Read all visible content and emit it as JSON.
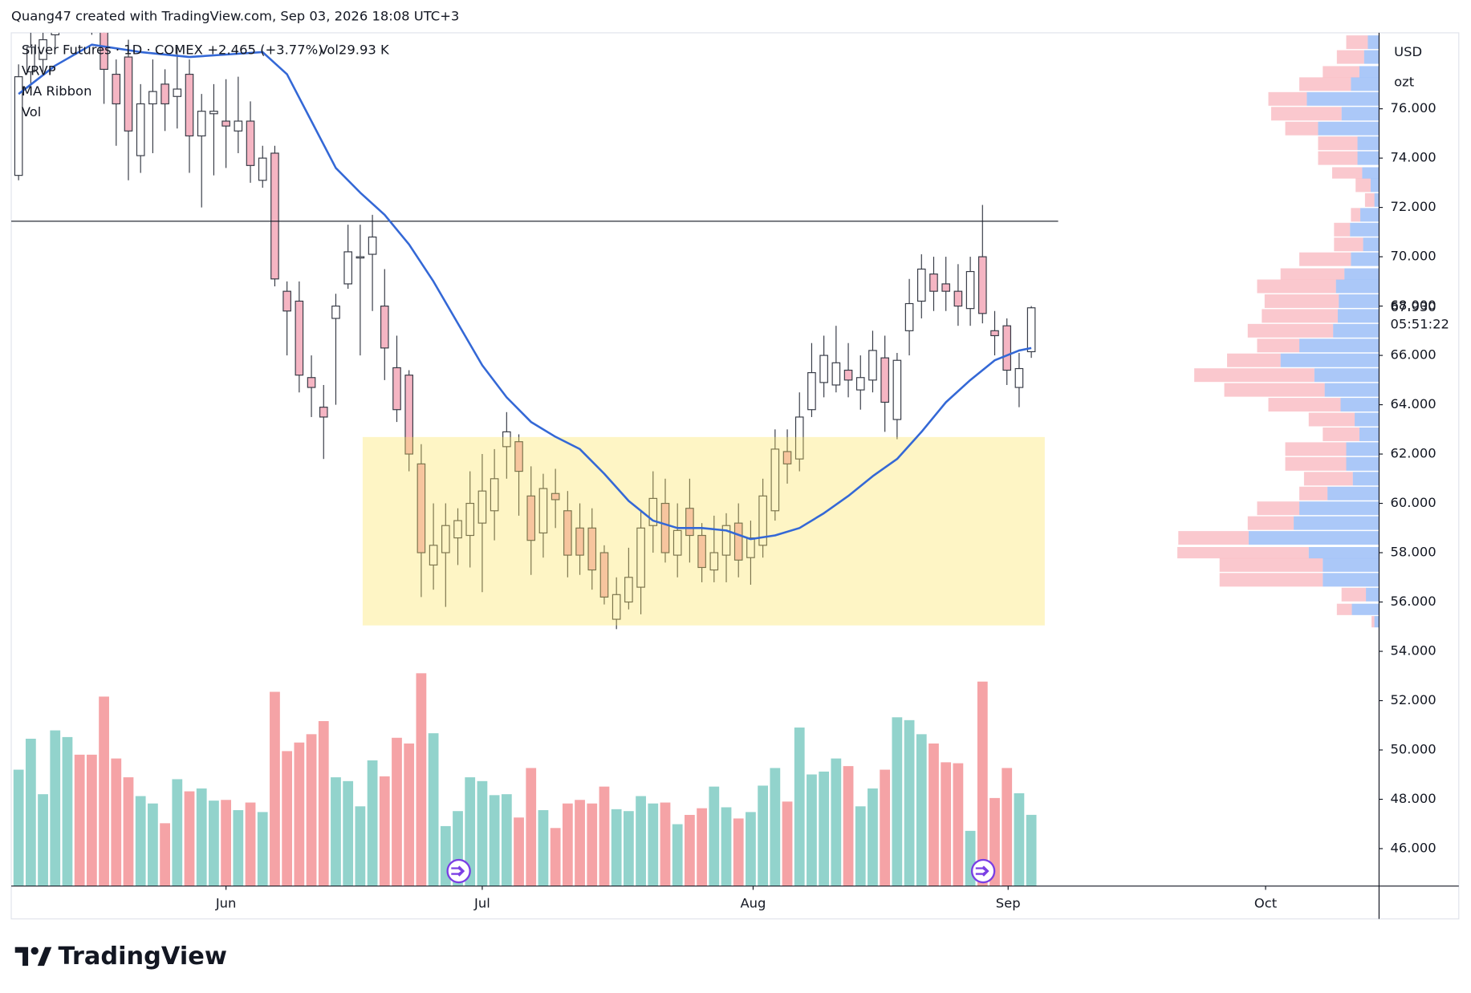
{
  "header": {
    "credit": "Quang47 created with TradingView.com, Sep 03, 2026 18:08 UTC+3"
  },
  "logo": "TradingView",
  "chart_data": {
    "type": "candlestick",
    "title": "Silver Futures · 1D · COMEX",
    "change": "+2.465 (+3.77%)",
    "volume_label": "Vol29.93 K",
    "indicators": [
      "VRVP",
      "MA Ribbon",
      "Vol"
    ],
    "currency": "USD",
    "unit": "ozt",
    "last_price": {
      "value": 67.93,
      "label": "67.930"
    },
    "countdown": "05:51:22",
    "x": [
      0,
      1,
      2,
      3,
      4,
      5,
      6,
      7,
      8,
      9,
      10,
      11,
      12,
      13,
      14,
      15,
      16,
      17,
      18,
      19,
      20,
      21,
      22,
      23,
      24,
      25,
      26,
      27,
      28,
      29,
      30,
      31,
      32,
      33,
      34,
      35,
      36,
      37,
      38,
      39,
      40,
      41,
      42,
      43,
      44,
      45,
      46,
      47,
      48,
      49,
      50,
      51,
      52,
      53,
      54,
      55,
      56,
      57,
      58,
      59,
      60,
      61,
      62,
      63,
      64,
      65,
      66,
      67,
      68,
      69,
      70,
      71,
      72,
      73,
      74,
      75,
      76,
      77,
      78,
      79,
      80,
      81,
      82,
      83
    ],
    "open": [
      73.3,
      77.5,
      78,
      79,
      80,
      80.5,
      80,
      79.3,
      77.4,
      78.1,
      74.1,
      76.2,
      77.0,
      76.5,
      77.4,
      74.9,
      75.8,
      75.5,
      75.1,
      75.5,
      73.1,
      74.2,
      68.6,
      68.2,
      65.1,
      63.9,
      67.5,
      68.9,
      69.95,
      70.1,
      68.0,
      65.5,
      65.2,
      61.6,
      57.5,
      58.0,
      58.6,
      58.7,
      59.2,
      59.7,
      62.3,
      62.5,
      60.3,
      58.8,
      60.4,
      59.7,
      59.0,
      59.0,
      58.0,
      55.3,
      56.0,
      56.6,
      59.1,
      60.0,
      57.9,
      59.8,
      58.7,
      57.3,
      57.9,
      59.2,
      57.8,
      58.3,
      59.7,
      62.1,
      61.8,
      63.8,
      64.9,
      64.8,
      65.4,
      64.6,
      65.0,
      65.9,
      63.4,
      67.0,
      68.2,
      69.3,
      68.9,
      68.6,
      67.9,
      70.0,
      67.0,
      67.2,
      64.7,
      66.15
    ],
    "high": [
      77.8,
      79.5,
      79.5,
      80.5,
      81,
      81,
      80.5,
      80,
      78,
      78.8,
      77,
      78,
      77.6,
      78.5,
      78,
      76.6,
      77,
      77.2,
      77.3,
      76.3,
      74.5,
      74.5,
      69.0,
      69.0,
      66.0,
      64.8,
      68.5,
      71.3,
      71.3,
      71.7,
      69.5,
      66.8,
      65.4,
      62.4,
      60.0,
      60.0,
      59.8,
      61.3,
      62.0,
      62.2,
      63.7,
      62.8,
      61.5,
      61.2,
      61.4,
      60.5,
      60.0,
      59.8,
      58.3,
      57.0,
      58.2,
      59.7,
      61.3,
      61.0,
      60.0,
      61.0,
      59.2,
      59.5,
      59.6,
      60.0,
      59.3,
      61.0,
      63.0,
      63.0,
      64.5,
      66.5,
      66.8,
      67.2,
      66.5,
      66.0,
      67.0,
      66.8,
      66.1,
      69.1,
      70.1,
      70.0,
      70.0,
      69.7,
      70.0,
      72.1,
      67.8,
      67.5,
      66.1,
      68.0
    ],
    "low": [
      73.1,
      77,
      77.5,
      78.5,
      79.5,
      79.5,
      79,
      76.2,
      74.5,
      73.1,
      73.4,
      74.2,
      75.1,
      75.2,
      73.4,
      72.0,
      73.3,
      73.6,
      74.2,
      73.0,
      72.8,
      68.8,
      66.0,
      64.5,
      63.5,
      61.8,
      64.0,
      68.7,
      66.0,
      67.8,
      65.0,
      63.3,
      61.3,
      56.2,
      56.5,
      55.8,
      57.5,
      57.4,
      56.4,
      58.5,
      61.0,
      59.5,
      57.1,
      57.8,
      59.0,
      57.0,
      57.1,
      56.5,
      55.9,
      54.9,
      55.7,
      55.5,
      58.0,
      57.6,
      57.0,
      57.6,
      56.8,
      56.8,
      56.8,
      57.0,
      56.7,
      57.8,
      59.3,
      60.8,
      61.3,
      63.5,
      64.3,
      64.5,
      64.3,
      63.8,
      64.5,
      62.9,
      62.6,
      66.0,
      67.5,
      67.8,
      67.8,
      67.2,
      67.2,
      67.3,
      66.0,
      64.8,
      63.9,
      65.9
    ],
    "close": [
      77.3,
      78.5,
      78.8,
      80,
      80.5,
      80,
      79.5,
      77.6,
      76.2,
      75.1,
      76.2,
      76.7,
      76.2,
      76.8,
      74.9,
      75.9,
      75.9,
      75.3,
      75.5,
      73.7,
      74.0,
      69.1,
      67.8,
      65.2,
      64.7,
      63.5,
      68.0,
      70.2,
      70.0,
      70.8,
      66.3,
      63.8,
      62.0,
      58.0,
      58.3,
      59.1,
      59.3,
      60.0,
      60.5,
      61.0,
      62.9,
      61.3,
      58.5,
      60.6,
      60.15,
      57.9,
      57.9,
      57.3,
      56.2,
      56.3,
      57.0,
      59.0,
      60.2,
      58.0,
      58.9,
      58.7,
      57.4,
      58.0,
      59.1,
      57.7,
      58.6,
      60.3,
      62.2,
      61.6,
      63.5,
      65.3,
      66.0,
      65.7,
      65.0,
      65.1,
      66.2,
      64.1,
      65.8,
      68.1,
      69.5,
      68.6,
      68.6,
      68.0,
      69.4,
      67.7,
      66.8,
      65.4,
      65.465,
      67.93
    ],
    "volume": [
      48.9,
      61.9,
      38.6,
      65.4,
      62.6,
      55.2,
      55.2,
      79.6,
      53.6,
      45.7,
      37.8,
      34.7,
      26.4,
      44.9,
      39.8,
      41.0,
      35.9,
      36.2,
      31.9,
      35.1,
      31.1,
      81.6,
      56.7,
      60.3,
      63.8,
      69.3,
      45.7,
      44.1,
      33.5,
      52.8,
      46.1,
      62.3,
      59.9,
      89.4,
      64.2,
      25.2,
      31.5,
      45.7,
      44.1,
      38.2,
      38.6,
      28.8,
      49.6,
      31.9,
      24.4,
      34.7,
      36.2,
      34.7,
      41.8,
      32.3,
      31.5,
      37.8,
      34.7,
      35.1,
      26.0,
      29.9,
      32.7,
      41.8,
      33.1,
      28.4,
      31.1,
      42.2,
      49.6,
      35.5,
      66.6,
      46.9,
      48.1,
      53.6,
      50.4,
      33.5,
      41.0,
      48.9,
      70.9,
      69.7,
      63.8,
      59.9,
      52.0,
      51.6,
      23.2,
      85.9,
      37.0,
      49.6,
      39.0,
      29.93
    ],
    "up_color": "#ffffff",
    "down_color": "#f5b5c3",
    "border_color": "#363a45",
    "volume_up_color": "#92d3cc",
    "volume_down_color": "#f5a3a6",
    "ma": {
      "x": [
        0,
        3,
        6,
        10,
        14,
        17,
        20,
        22,
        24,
        26,
        28,
        30,
        32,
        34,
        36,
        38,
        40,
        42,
        44,
        46,
        48,
        50,
        52,
        54,
        56,
        58,
        60,
        62,
        64,
        66,
        68,
        70,
        72,
        74,
        76,
        78,
        80,
        82,
        83
      ],
      "values": [
        76.6,
        77.75,
        78.6,
        78.3,
        78.1,
        78.2,
        78.3,
        77.4,
        75.5,
        73.6,
        72.6,
        71.7,
        70.5,
        69.0,
        67.3,
        65.6,
        64.3,
        63.3,
        62.7,
        62.2,
        61.2,
        60.1,
        59.3,
        59.0,
        59.0,
        58.9,
        58.55,
        58.7,
        59.0,
        59.6,
        60.3,
        61.1,
        61.8,
        62.9,
        64.1,
        65.0,
        65.8,
        66.2,
        66.3
      ],
      "color": "#3468d6"
    },
    "hline": {
      "value": 71.44,
      "xlim": [
        -0.6,
        85.2
      ],
      "color": "#131722"
    },
    "zone": {
      "xlim": [
        28.2,
        84.1
      ],
      "ylim": [
        55.05,
        62.69
      ],
      "color": "#fbe35a"
    },
    "profile": {
      "prices": [
        55.2,
        55.7,
        56.3,
        56.9,
        57.5,
        58.0,
        58.6,
        59.2,
        59.8,
        60.4,
        61.0,
        61.6,
        62.2,
        62.8,
        63.4,
        64.0,
        64.6,
        65.2,
        65.8,
        66.4,
        67.0,
        67.6,
        68.2,
        68.8,
        69.3,
        69.9,
        70.5,
        71.1,
        71.7,
        72.3,
        72.9,
        73.4,
        74.0,
        74.6,
        75.2,
        75.8,
        76.4,
        77.0,
        77.5,
        78.1,
        78.7
      ],
      "up": [
        5,
        29,
        14,
        60,
        60,
        75,
        139,
        91,
        85,
        55,
        28,
        35,
        35,
        21,
        26,
        41,
        58,
        69,
        105,
        85,
        49,
        44,
        43,
        46,
        37,
        30,
        17,
        31,
        20,
        5,
        9,
        18,
        23,
        23,
        65,
        40,
        77,
        30,
        21,
        16,
        12
      ],
      "down": [
        3,
        16,
        26,
        110,
        110,
        140,
        75,
        49,
        45,
        30,
        52,
        65,
        65,
        39,
        49,
        77,
        107,
        128,
        57,
        45,
        91,
        81,
        79,
        84,
        68,
        55,
        31,
        17,
        10,
        10,
        16,
        32,
        42,
        42,
        35,
        75,
        41,
        55,
        39,
        29,
        23
      ],
      "up_color": "#8fb6f5",
      "down_color": "#f59aa6"
    },
    "xlim": [
      -0.6,
      111.5
    ],
    "xticks": [
      {
        "value": 17,
        "label": "Jun"
      },
      {
        "value": 38,
        "label": "Jul"
      },
      {
        "value": 60.2,
        "label": "Aug"
      },
      {
        "value": 81.1,
        "label": "Sep"
      },
      {
        "value": 102.2,
        "label": "Oct"
      }
    ],
    "ylim": [
      44.48,
      79.08
    ],
    "yticks": [
      {
        "value": 46,
        "label": "46.000"
      },
      {
        "value": 48,
        "label": "48.000"
      },
      {
        "value": 50,
        "label": "50.000"
      },
      {
        "value": 52,
        "label": "52.000"
      },
      {
        "value": 54,
        "label": "54.000"
      },
      {
        "value": 56,
        "label": "56.000"
      },
      {
        "value": 58,
        "label": "58.000"
      },
      {
        "value": 60,
        "label": "60.000"
      },
      {
        "value": 62,
        "label": "62.000"
      },
      {
        "value": 64,
        "label": "64.000"
      },
      {
        "value": 66,
        "label": "66.000"
      },
      {
        "value": 68,
        "label": "68.000"
      },
      {
        "value": 70,
        "label": "70.000"
      },
      {
        "value": 72,
        "label": "72.000"
      },
      {
        "value": 74,
        "label": "74.000"
      },
      {
        "value": 76,
        "label": "76.000"
      }
    ],
    "grid": false
  }
}
